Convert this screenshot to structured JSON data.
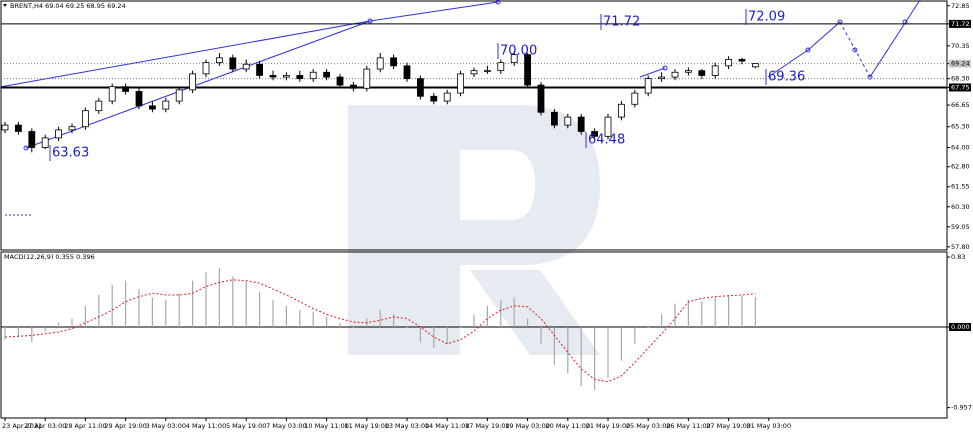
{
  "chart_data": [
    {
      "type": "candlestick",
      "title": "BRENT,H4  69.04 69.25 68.95 69.24",
      "categories": [
        "23 Apr 2021",
        null,
        null,
        "27 Apr 03:00",
        null,
        null,
        "28 Apr 11:00",
        null,
        null,
        "29 Apr 19:00",
        null,
        null,
        "3 May 03:00",
        null,
        null,
        "4 May 11:00",
        null,
        null,
        "5 May 19:00",
        null,
        null,
        "7 May 03:00",
        null,
        null,
        "10 May 11:00",
        null,
        null,
        "11 May 19:00",
        null,
        null,
        "13 May 03:00",
        null,
        null,
        "14 May 11:00",
        null,
        null,
        "17 May 19:00",
        null,
        null,
        "19 May 03:00",
        null,
        null,
        "20 May 11:00",
        null,
        null,
        "21 May 19:00",
        null,
        null,
        "25 May 03:00",
        null,
        null,
        "26 May 11:00",
        null,
        null,
        "27 May 19:00",
        null,
        null,
        "31 May 03:00"
      ],
      "open": [
        65.1,
        65.4,
        65.0,
        64.0,
        64.6,
        65.1,
        65.3,
        66.3,
        66.9,
        67.8,
        67.5,
        66.6,
        66.4,
        66.9,
        67.6,
        68.6,
        69.3,
        69.6,
        68.9,
        69.2,
        68.5,
        68.4,
        68.5,
        68.3,
        68.7,
        68.4,
        67.9,
        67.7,
        68.9,
        69.6,
        69.1,
        68.3,
        67.2,
        66.9,
        67.4,
        68.6,
        68.8,
        68.8,
        69.3,
        69.8,
        67.9,
        66.2,
        65.4,
        65.9,
        65.0,
        64.7,
        65.9,
        66.7,
        67.4,
        68.3,
        68.4,
        68.7,
        68.8,
        68.5,
        69.1,
        69.5,
        69.04,
        null
      ],
      "high": [
        65.6,
        65.6,
        65.2,
        64.8,
        65.3,
        65.5,
        66.5,
        67.1,
        68.0,
        68.0,
        67.7,
        66.9,
        67.1,
        67.8,
        68.8,
        69.5,
        69.9,
        69.8,
        69.5,
        69.4,
        68.8,
        68.7,
        68.8,
        68.9,
        68.9,
        68.6,
        68.1,
        69.1,
        69.9,
        69.8,
        69.3,
        68.5,
        67.4,
        67.6,
        68.8,
        69.0,
        69.1,
        69.5,
        70.0,
        69.9,
        68.1,
        66.4,
        66.1,
        66.1,
        65.2,
        66.1,
        66.9,
        67.6,
        68.5,
        68.7,
        68.9,
        69.0,
        68.9,
        69.3,
        69.7,
        69.6,
        69.25,
        null
      ],
      "low": [
        64.9,
        64.8,
        63.7,
        63.9,
        64.4,
        64.9,
        65.1,
        66.1,
        66.7,
        67.3,
        66.4,
        66.2,
        66.2,
        66.7,
        67.4,
        68.4,
        69.1,
        68.7,
        68.7,
        68.3,
        68.2,
        68.2,
        68.1,
        68.1,
        68.2,
        67.7,
        67.5,
        67.5,
        68.7,
        68.9,
        68.1,
        67.0,
        66.7,
        66.7,
        67.2,
        68.4,
        68.6,
        68.6,
        69.1,
        67.7,
        66.0,
        65.2,
        65.2,
        64.8,
        64.48,
        64.5,
        65.7,
        66.5,
        67.2,
        68.1,
        68.2,
        68.5,
        68.3,
        68.3,
        68.9,
        69.2,
        68.95,
        null
      ],
      "close": [
        65.4,
        65.0,
        64.0,
        64.6,
        65.1,
        65.3,
        66.3,
        66.9,
        67.8,
        67.5,
        66.6,
        66.4,
        66.9,
        67.6,
        68.6,
        69.3,
        69.6,
        68.9,
        69.2,
        68.5,
        68.4,
        68.5,
        68.3,
        68.7,
        68.4,
        67.9,
        67.7,
        68.9,
        69.6,
        69.1,
        68.3,
        67.2,
        66.9,
        67.4,
        68.6,
        68.8,
        68.8,
        69.3,
        69.8,
        67.9,
        66.2,
        65.4,
        65.9,
        65.0,
        64.7,
        65.9,
        66.7,
        67.4,
        68.3,
        68.4,
        68.7,
        68.8,
        68.5,
        69.1,
        69.5,
        69.4,
        69.24,
        null
      ],
      "ylim": [
        57.6,
        73.15
      ],
      "yticks": [
        72.85,
        71.72,
        70.35,
        69.24,
        {
          "value": 68.3,
          "label": "68.30"
        },
        67.75,
        66.65,
        {
          "value": 65.3,
          "label": "65.30"
        },
        {
          "value": 64,
          "label": "64.00"
        },
        {
          "value": 62.8,
          "label": "62.80"
        },
        61.55,
        {
          "value": 60.3,
          "label": "60.30"
        },
        59.05,
        {
          "value": 57.8,
          "label": "57.80"
        }
      ],
      "annotations": [
        "71.72",
        "72.09",
        "70.00",
        "69.36",
        "64.48",
        "63.63"
      ]
    },
    {
      "type": "macd",
      "title": "MACD(12,26,9) 0.355 0.396",
      "color": "#a8a8a8",
      "signal_color": "#e02020",
      "values": [
        -0.15,
        -0.12,
        -0.18,
        -0.05,
        0.05,
        0.1,
        0.25,
        0.38,
        0.5,
        0.55,
        0.45,
        0.35,
        0.32,
        0.4,
        0.55,
        0.65,
        0.7,
        0.6,
        0.55,
        0.42,
        0.32,
        0.25,
        0.2,
        0.18,
        0.12,
        0.05,
        0.0,
        0.1,
        0.2,
        0.15,
        0.0,
        -0.18,
        -0.25,
        -0.2,
        0.0,
        0.15,
        0.25,
        0.32,
        0.35,
        0.1,
        -0.2,
        -0.45,
        -0.55,
        -0.7,
        -0.75,
        -0.6,
        -0.4,
        -0.2,
        0.0,
        0.15,
        0.28,
        0.32,
        0.3,
        0.35,
        0.38,
        0.37,
        0.355,
        null
      ],
      "signal": [
        -0.12,
        -0.11,
        -0.1,
        -0.08,
        -0.06,
        -0.02,
        0.05,
        0.12,
        0.2,
        0.3,
        0.36,
        0.4,
        0.38,
        0.38,
        0.4,
        0.48,
        0.53,
        0.56,
        0.55,
        0.52,
        0.45,
        0.38,
        0.3,
        0.22,
        0.15,
        0.1,
        0.06,
        0.05,
        0.08,
        0.12,
        0.1,
        0.0,
        -0.12,
        -0.2,
        -0.15,
        -0.05,
        0.1,
        0.2,
        0.25,
        0.24,
        0.1,
        -0.1,
        -0.3,
        -0.5,
        -0.62,
        -0.65,
        -0.58,
        -0.42,
        -0.25,
        -0.08,
        0.1,
        0.3,
        0.34,
        0.36,
        0.37,
        0.38,
        0.396,
        null
      ],
      "ylim": [
        -1.08,
        0.89
      ],
      "yticks": [
        0.83,
        {
          "value": 0,
          "label": "0.000"
        },
        -0.957
      ]
    }
  ]
}
